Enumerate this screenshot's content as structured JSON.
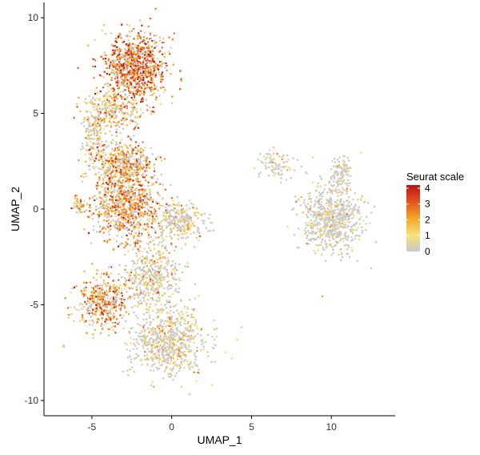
{
  "chart_data": {
    "type": "scatter",
    "title": "",
    "xlabel": "UMAP_1",
    "ylabel": "UMAP_2",
    "xlim": [
      -8,
      14
    ],
    "ylim": [
      -10.8,
      10.8
    ],
    "x_ticks": [
      "-5",
      "0",
      "5",
      "10"
    ],
    "x_tick_values": [
      -5,
      0,
      5,
      10
    ],
    "y_ticks": [
      "10",
      "5",
      "0",
      "-5",
      "-10"
    ],
    "y_tick_values": [
      10,
      5,
      0,
      -5,
      -10
    ],
    "grid": false,
    "legend": {
      "title": "Seurat scale",
      "placement": "right",
      "labels": [
        "4",
        "3",
        "2",
        "1",
        "0"
      ],
      "label_values": [
        4,
        3,
        2,
        1,
        0
      ],
      "range": [
        0,
        4.2
      ],
      "gradient": [
        "#c8c8c8",
        "#f6e27a",
        "#f4a528",
        "#e4541c",
        "#b3161b"
      ]
    },
    "clusters": [
      {
        "name": "upper-left",
        "center": [
          -2.3,
          7.4
        ],
        "spread": [
          1.3,
          1.2
        ],
        "count": 900,
        "mean_value": 2.7
      },
      {
        "name": "top-bridge",
        "center": [
          -3.6,
          5.2
        ],
        "spread": [
          1.3,
          0.7
        ],
        "count": 260,
        "mean_value": 1.6
      },
      {
        "name": "ring-left",
        "center": [
          -4.8,
          3.8
        ],
        "spread": [
          0.5,
          1.0
        ],
        "count": 140,
        "mean_value": 1.2
      },
      {
        "name": "middle-left",
        "center": [
          -3.1,
          2.3
        ],
        "spread": [
          1.2,
          0.9
        ],
        "count": 480,
        "mean_value": 2.0
      },
      {
        "name": "middle-core",
        "center": [
          -2.7,
          0.0
        ],
        "spread": [
          1.5,
          1.2
        ],
        "count": 800,
        "mean_value": 2.3
      },
      {
        "name": "middle-right-extension",
        "center": [
          0.6,
          -0.6
        ],
        "spread": [
          1.0,
          0.6
        ],
        "count": 260,
        "mean_value": 0.7
      },
      {
        "name": "left-bump",
        "center": [
          -5.8,
          0.2
        ],
        "spread": [
          0.3,
          0.3
        ],
        "count": 40,
        "mean_value": 1.8
      },
      {
        "name": "lower-left",
        "center": [
          -4.4,
          -4.9
        ],
        "spread": [
          1.0,
          0.9
        ],
        "count": 420,
        "mean_value": 2.2
      },
      {
        "name": "lower-middle",
        "center": [
          -1.2,
          -3.5
        ],
        "spread": [
          1.1,
          1.1
        ],
        "count": 420,
        "mean_value": 1.0
      },
      {
        "name": "bottom",
        "center": [
          -0.2,
          -6.9
        ],
        "spread": [
          1.6,
          1.2
        ],
        "count": 720,
        "mean_value": 0.7
      },
      {
        "name": "diagonal-streak",
        "center": [
          6.6,
          2.3
        ],
        "spread": [
          0.9,
          0.45
        ],
        "count": 90,
        "mean_value": 0.5
      },
      {
        "name": "right-cluster",
        "center": [
          10.0,
          -0.6
        ],
        "spread": [
          1.3,
          1.1
        ],
        "count": 650,
        "mean_value": 0.4
      },
      {
        "name": "right-arm",
        "center": [
          10.6,
          1.8
        ],
        "spread": [
          0.4,
          0.6
        ],
        "count": 120,
        "mean_value": 0.3
      },
      {
        "name": "stray-left",
        "center": [
          -6.8,
          -7.2
        ],
        "spread": [
          0.1,
          0.05
        ],
        "count": 4,
        "mean_value": 1.0
      }
    ]
  }
}
